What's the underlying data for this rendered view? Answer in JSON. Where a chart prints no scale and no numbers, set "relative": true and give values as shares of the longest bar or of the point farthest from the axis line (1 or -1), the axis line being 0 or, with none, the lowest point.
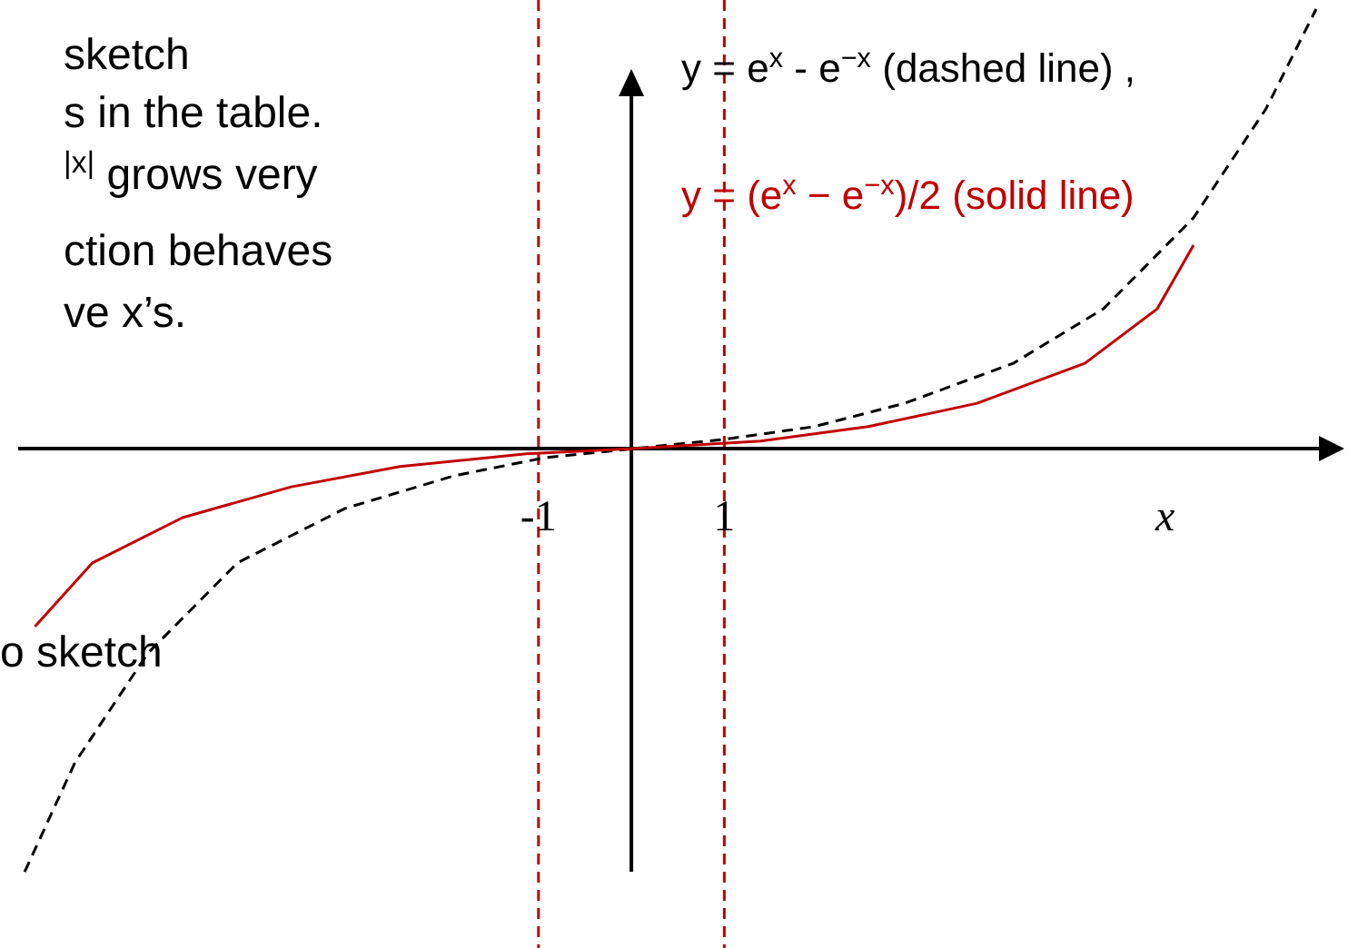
{
  "chart_data": {
    "type": "line",
    "xlabel": "x",
    "relative": true,
    "xlim": [
      -6.6,
      7.4
    ],
    "xticks": [
      -1,
      1
    ],
    "line_style": "solid",
    "legend": "top right",
    "series": [
      {
        "name": "y = e$^{x}$ -  e$^{−x}$ (dashed line) ,",
        "color": "#000000",
        "line_style": "dashed",
        "x": [
          -6.53,
          -5.99,
          -5.21,
          -4.24,
          -3.08,
          -1.91,
          -0.94,
          0.03,
          1.0,
          1.97,
          2.94,
          4.11,
          5.08,
          6.05,
          6.83,
          7.37
        ],
        "values": [
          -0.963,
          -0.715,
          -0.467,
          -0.26,
          -0.136,
          -0.062,
          -0.021,
          0,
          0.021,
          0.05,
          0.103,
          0.194,
          0.318,
          0.525,
          0.773,
          1.0
        ]
      },
      {
        "name": "y = (e$^{x}$ − e$^{−x}$)/2 (solid line)",
        "color": "#c00000",
        "x": [
          -6.42,
          -5.8,
          -4.83,
          -3.66,
          -2.49,
          -1.13,
          0.03,
          1.39,
          2.55,
          3.72,
          4.88,
          5.66,
          6.05
        ],
        "values": [
          -0.405,
          -0.26,
          -0.157,
          -0.087,
          -0.041,
          -0.012,
          0,
          0.017,
          0.05,
          0.103,
          0.194,
          0.318,
          0.463
        ]
      }
    ],
    "ref_lines": [
      {
        "axis": "x",
        "value": -1,
        "color": "#c00000",
        "line_style": "dashed"
      },
      {
        "axis": "x",
        "value": 1,
        "color": "#c00000",
        "line_style": "dashed"
      }
    ],
    "annotations": [
      "sketch",
      "s  in  the  table.",
      "$^{|x|}$  grows very",
      "ction behaves",
      "ve x’s.",
      "o sketch"
    ]
  }
}
